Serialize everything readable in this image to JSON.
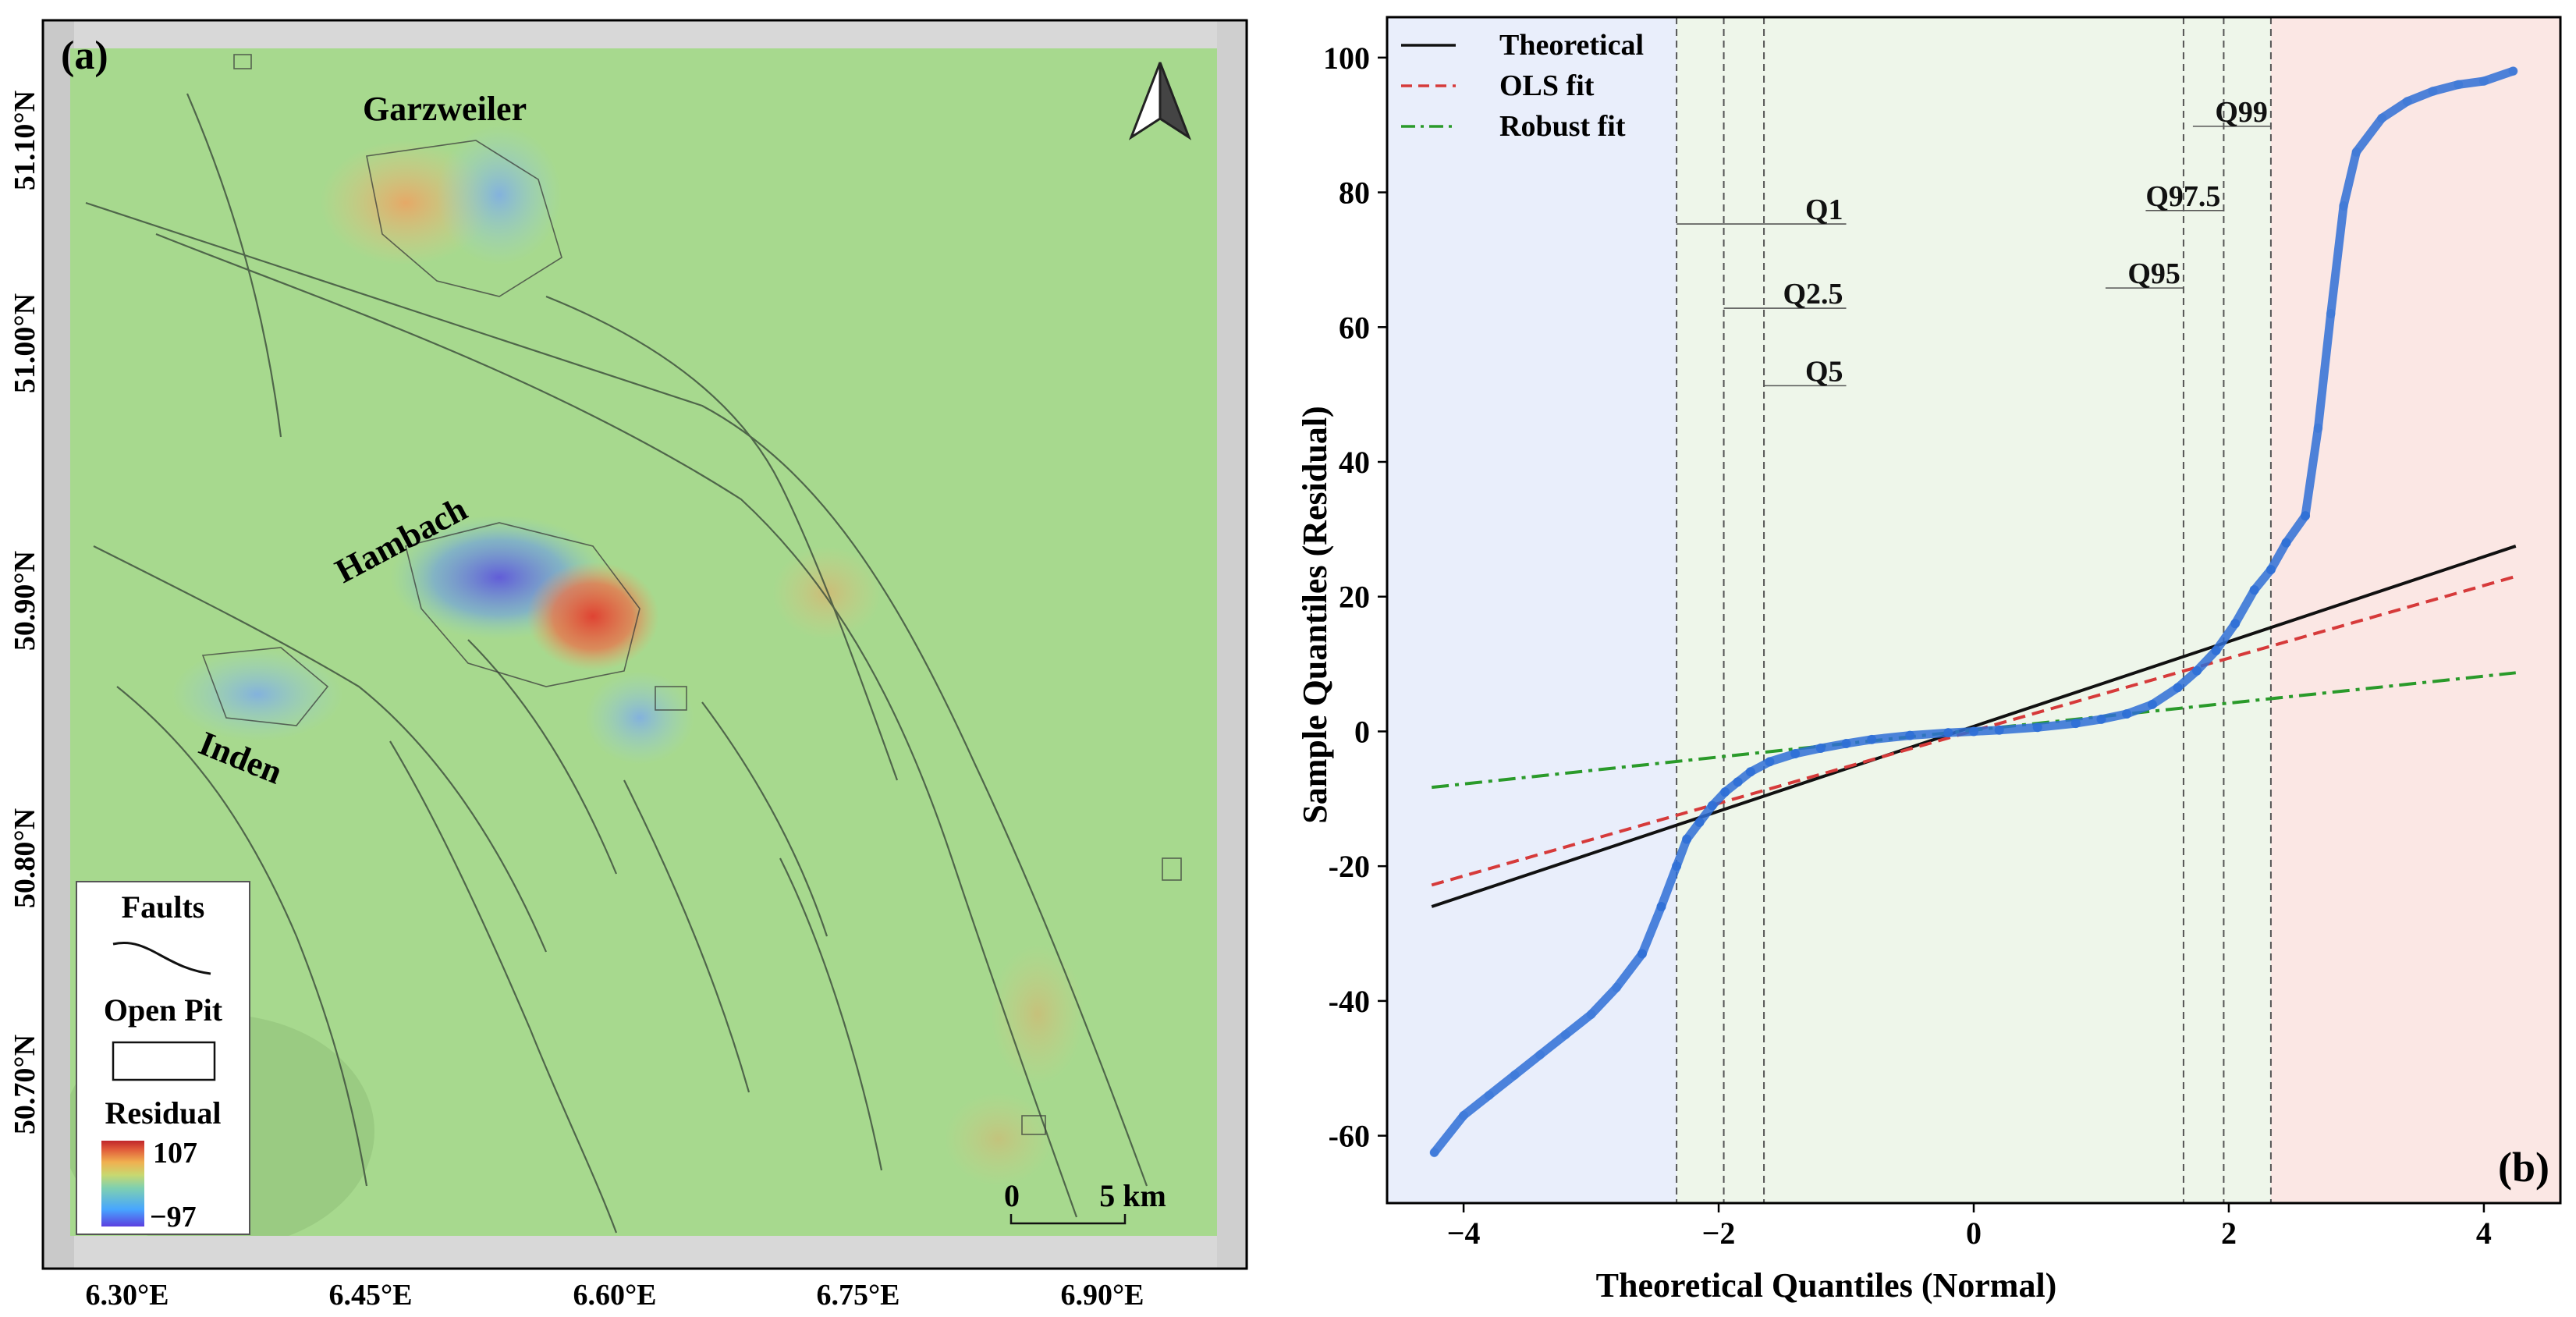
{
  "map_panel": {
    "panel_label": "(a)",
    "lat_labels": [
      "51.10°N",
      "51.00°N",
      "50.90°N",
      "50.80°N",
      "50.70°N"
    ],
    "lon_labels": [
      "6.30°E",
      "6.45°E",
      "6.60°E",
      "6.75°E",
      "6.90°E"
    ],
    "site_labels": [
      "Garzweiler",
      "Hambach",
      "Inden"
    ],
    "legend": {
      "faults": "Faults",
      "open_pit": "Open Pit",
      "residual": "Residual",
      "max": "107",
      "min": "−97"
    },
    "scalebar": {
      "start": "0",
      "end": "5 km"
    },
    "north_arrow": "north-arrow-icon",
    "colormap": [
      "#5b3fe0",
      "#47a6ff",
      "#7fd0b0",
      "#a7d98e",
      "#f0c060",
      "#e05a3a",
      "#c0262a"
    ]
  },
  "chart_data": {
    "type": "scatter",
    "panel_label": "(b)",
    "xlabel": "Theoretical Quantiles (Normal)",
    "ylabel": "Sample Quantiles (Residual)",
    "xlim": [
      -4.6,
      4.6
    ],
    "ylim": [
      -70,
      106
    ],
    "xticks": [
      -4,
      -2,
      0,
      2,
      4
    ],
    "yticks": [
      -60,
      -40,
      -20,
      0,
      20,
      40,
      60,
      80,
      100
    ],
    "grid": false,
    "legend_position": "top-left",
    "colors": {
      "points": "#2f6fd6",
      "theoretical": "#111111",
      "ols": "#d63a3a",
      "robust": "#2a9a2a"
    },
    "series": [
      {
        "name": "Theoretical",
        "style": "solid",
        "x": [
          -4.25,
          4.25
        ],
        "y": [
          -26,
          27.5
        ]
      },
      {
        "name": "OLS fit",
        "style": "dashed",
        "x": [
          -4.25,
          4.25
        ],
        "y": [
          -22.8,
          23.0
        ]
      },
      {
        "name": "Robust fit",
        "style": "dashdot",
        "x": [
          -4.25,
          4.25
        ],
        "y": [
          -8.3,
          8.7
        ]
      },
      {
        "name": "",
        "style": "points",
        "x": [
          -4.23,
          -4.0,
          -3.8,
          -3.6,
          -3.4,
          -3.2,
          -3.0,
          -2.8,
          -2.6,
          -2.45,
          -2.33,
          -2.25,
          -2.15,
          -2.05,
          -1.95,
          -1.85,
          -1.75,
          -1.6,
          -1.4,
          -1.2,
          -1.0,
          -0.8,
          -0.5,
          -0.2,
          0.0,
          0.2,
          0.5,
          0.8,
          1.0,
          1.2,
          1.4,
          1.6,
          1.75,
          1.9,
          2.05,
          2.2,
          2.33,
          2.45,
          2.6,
          2.7,
          2.8,
          2.9,
          3.0,
          3.2,
          3.4,
          3.6,
          3.8,
          4.0,
          4.23
        ],
        "y": [
          -62.5,
          -57,
          -54,
          -51,
          -48,
          -45,
          -42,
          -38,
          -33,
          -26,
          -20,
          -16,
          -13.5,
          -11,
          -9,
          -7.5,
          -6,
          -4.5,
          -3.3,
          -2.5,
          -1.8,
          -1.2,
          -0.6,
          -0.2,
          0.0,
          0.2,
          0.6,
          1.2,
          1.8,
          2.6,
          4.0,
          6.5,
          9,
          12,
          16,
          21,
          24,
          28,
          32,
          45,
          62,
          78,
          86,
          91,
          93.5,
          95,
          96,
          96.5,
          98
        ]
      }
    ],
    "vlines": [
      {
        "label": "Q1",
        "x": -2.33
      },
      {
        "label": "Q2.5",
        "x": -1.96
      },
      {
        "label": "Q5",
        "x": -1.645
      },
      {
        "label": "Q95",
        "x": 1.645
      },
      {
        "label": "Q97.5",
        "x": 1.96
      },
      {
        "label": "Q99",
        "x": 2.33
      }
    ],
    "label_y": {
      "Q1": 76,
      "Q2.5": 63.5,
      "Q5": 52,
      "Q95": 66.5,
      "Q97.5": 78,
      "Q99": 90.5
    },
    "shaded_regions": [
      {
        "x0": -4.6,
        "x1": -2.33,
        "color": "#e9eefb"
      },
      {
        "x0": -2.33,
        "x1": 2.33,
        "color": "#eef6ea"
      },
      {
        "x0": 2.33,
        "x1": 4.6,
        "color": "#fbe7e4"
      }
    ]
  }
}
